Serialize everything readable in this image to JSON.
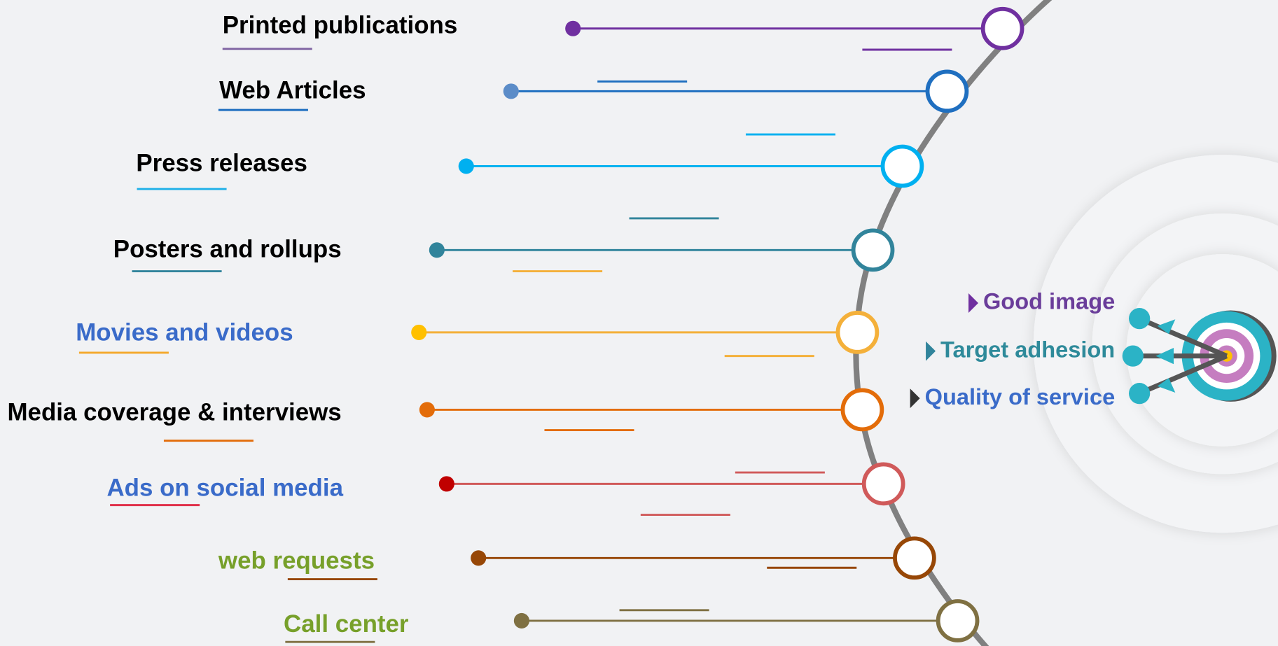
{
  "items": [
    {
      "label": "Printed publications"
    },
    {
      "label": "Web Articles"
    },
    {
      "label": "Press releases"
    },
    {
      "label": "Posters and rollups"
    },
    {
      "label": "Movies and videos"
    },
    {
      "label": "Media coverage & interviews"
    },
    {
      "label": "Ads on social media"
    },
    {
      "label": "web requests"
    },
    {
      "label": "Call center"
    }
  ],
  "goals": [
    {
      "label": "Good image"
    },
    {
      "label": "Target adhesion"
    },
    {
      "label": "Quality of service"
    }
  ]
}
